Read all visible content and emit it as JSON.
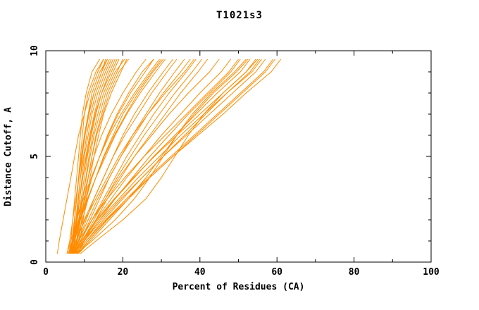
{
  "chart_data": {
    "type": "line",
    "title": "T1021s3",
    "xlabel": "Percent of Residues (CA)",
    "ylabel": "Distance Cutoff, A",
    "xlim": [
      0,
      100
    ],
    "ylim": [
      0,
      10
    ],
    "x_major_ticks": [
      0,
      20,
      40,
      60,
      80,
      100
    ],
    "x_minor_ticks": [
      10,
      30,
      50,
      70,
      90
    ],
    "y_major_ticks": [
      0,
      5,
      10
    ],
    "y_minor_ticks": [
      1,
      2,
      3,
      4,
      6,
      7,
      8,
      9
    ],
    "grid": false,
    "legend": "none",
    "line_color": "#ff8c00",
    "background": "#ffffff",
    "series_description": "Per-model accuracy curves: percent of CA residues (x) under distance cutoff (y)",
    "y_levels": [
      0.4,
      1,
      2,
      3,
      4,
      5,
      6,
      7,
      8,
      9,
      9.6
    ],
    "curves": [
      [
        6.0,
        6.5,
        7.0,
        7.5,
        8.0,
        8.5,
        9.0,
        9.5,
        10.5,
        12.0,
        14.0
      ],
      [
        6.5,
        7.0,
        7.5,
        8.0,
        8.5,
        9.0,
        9.5,
        10.0,
        11.0,
        13.0,
        15.0
      ],
      [
        7.0,
        7.5,
        8.0,
        8.5,
        9.0,
        9.5,
        10.0,
        11.0,
        12.0,
        14.0,
        16.0
      ],
      [
        6.0,
        6.8,
        7.4,
        8.0,
        8.6,
        9.2,
        10.0,
        11.0,
        12.5,
        14.5,
        15.5
      ],
      [
        7.0,
        7.6,
        8.2,
        8.8,
        9.4,
        10.0,
        11.0,
        12.0,
        13.5,
        15.5,
        17.0
      ],
      [
        6.2,
        7.0,
        7.8,
        8.4,
        9.0,
        9.8,
        10.6,
        11.6,
        13.0,
        15.0,
        16.5
      ],
      [
        7.5,
        8.0,
        8.6,
        9.2,
        10.0,
        10.8,
        11.8,
        13.0,
        14.5,
        16.5,
        18.0
      ],
      [
        6.8,
        7.4,
        8.1,
        8.8,
        9.6,
        10.4,
        11.4,
        12.6,
        14.0,
        16.0,
        17.5
      ],
      [
        7.2,
        8.0,
        8.8,
        9.6,
        10.4,
        11.2,
        12.2,
        13.5,
        15.0,
        17.5,
        19.0
      ],
      [
        6.4,
        7.2,
        8.0,
        8.8,
        9.6,
        10.6,
        11.6,
        12.8,
        14.5,
        17.0,
        18.5
      ],
      [
        7.8,
        8.5,
        9.3,
        10.1,
        11.0,
        12.0,
        13.0,
        14.5,
        16.0,
        18.5,
        20.0
      ],
      [
        6.6,
        7.5,
        8.5,
        9.5,
        10.5,
        11.5,
        12.5,
        14.0,
        15.5,
        18.0,
        20.5
      ],
      [
        8.0,
        8.8,
        9.7,
        10.6,
        11.5,
        12.5,
        13.7,
        15.0,
        17.0,
        19.5,
        21.0
      ],
      [
        7.4,
        8.2,
        9.0,
        10.0,
        11.0,
        12.0,
        13.2,
        14.8,
        16.5,
        19.0,
        21.5
      ],
      [
        5.5,
        6.2,
        7.0,
        7.8,
        8.6,
        9.4,
        10.2,
        11.2,
        12.5,
        14.5,
        16.0
      ],
      [
        3.0,
        3.5,
        4.5,
        5.5,
        6.5,
        7.5,
        8.5,
        10.0,
        11.5,
        13.5,
        15.0
      ],
      [
        6.0,
        7.0,
        8.0,
        9.5,
        11.0,
        12.5,
        14.5,
        17.0,
        20.0,
        23.5,
        26.0
      ],
      [
        6.5,
        7.5,
        9.0,
        10.5,
        12.0,
        14.0,
        16.0,
        18.5,
        21.5,
        25.0,
        28.0
      ],
      [
        7.0,
        8.0,
        9.5,
        11.0,
        13.0,
        15.0,
        17.5,
        20.0,
        23.5,
        27.5,
        30.0
      ],
      [
        6.0,
        7.2,
        9.0,
        11.0,
        13.0,
        15.5,
        18.0,
        21.0,
        24.5,
        28.5,
        31.0
      ],
      [
        7.0,
        8.5,
        10.5,
        12.5,
        15.0,
        17.5,
        20.0,
        23.0,
        26.5,
        30.5,
        33.0
      ],
      [
        6.5,
        8.0,
        10.0,
        12.5,
        15.0,
        17.5,
        20.5,
        24.0,
        27.5,
        31.5,
        34.0
      ],
      [
        7.5,
        9.0,
        11.5,
        14.0,
        16.5,
        19.5,
        22.5,
        26.0,
        29.5,
        33.5,
        36.0
      ],
      [
        6.8,
        8.5,
        11.0,
        13.5,
        16.5,
        19.5,
        23.0,
        26.5,
        30.5,
        35.0,
        37.5
      ],
      [
        7.0,
        9.0,
        12.0,
        15.0,
        18.0,
        21.0,
        24.5,
        28.0,
        32.0,
        36.5,
        39.0
      ],
      [
        7.5,
        9.5,
        12.5,
        15.5,
        18.5,
        22.0,
        25.5,
        29.5,
        33.5,
        38.0,
        40.5
      ],
      [
        8.0,
        10.0,
        13.0,
        16.0,
        19.5,
        23.0,
        27.0,
        31.0,
        35.0,
        39.5,
        42.0
      ],
      [
        5.8,
        7.0,
        8.8,
        10.8,
        13.0,
        15.2,
        17.8,
        20.8,
        24.0,
        27.8,
        30.5
      ],
      [
        7.0,
        9.0,
        12.0,
        15.5,
        19.0,
        23.0,
        27.5,
        32.0,
        37.0,
        42.5,
        45.0
      ],
      [
        7.5,
        9.5,
        13.0,
        17.0,
        21.0,
        25.5,
        30.0,
        35.0,
        40.0,
        45.5,
        48.0
      ],
      [
        8.0,
        10.0,
        14.0,
        18.0,
        22.5,
        27.0,
        32.0,
        37.0,
        42.5,
        48.0,
        50.5
      ],
      [
        7.0,
        9.5,
        13.5,
        18.0,
        23.0,
        28.0,
        33.5,
        39.0,
        44.5,
        50.5,
        53.0
      ],
      [
        8.0,
        10.5,
        15.0,
        20.0,
        25.0,
        30.5,
        36.0,
        41.5,
        47.0,
        53.0,
        55.5
      ],
      [
        7.5,
        10.0,
        14.5,
        19.5,
        25.0,
        30.5,
        36.5,
        42.5,
        48.5,
        54.5,
        57.0
      ],
      [
        8.5,
        11.0,
        16.0,
        21.5,
        27.0,
        33.0,
        39.0,
        45.0,
        51.0,
        57.0,
        59.5
      ],
      [
        7.8,
        10.5,
        15.5,
        21.0,
        27.0,
        33.0,
        39.5,
        46.0,
        52.0,
        58.5,
        61.0
      ],
      [
        6.5,
        8.5,
        12.0,
        16.0,
        20.5,
        25.5,
        31.0,
        36.5,
        42.0,
        47.5,
        50.0
      ],
      [
        7.2,
        9.8,
        14.0,
        19.0,
        24.0,
        29.5,
        35.0,
        41.0,
        47.0,
        53.5,
        56.0
      ],
      [
        8.2,
        11.0,
        15.8,
        21.0,
        26.5,
        32.5,
        38.5,
        44.5,
        50.5,
        56.5,
        59.0
      ],
      [
        6.8,
        9.2,
        13.2,
        17.8,
        22.8,
        28.2,
        34.0,
        40.0,
        46.0,
        52.0,
        54.5
      ],
      [
        8.0,
        12.0,
        18.0,
        23.0,
        27.0,
        30.5,
        34.0,
        38.0,
        43.0,
        49.0,
        52.0
      ],
      [
        9.0,
        13.0,
        20.0,
        26.0,
        30.0,
        33.5,
        37.0,
        41.0,
        46.0,
        52.0,
        55.0
      ],
      [
        8.5,
        11.5,
        16.5,
        21.5,
        26.0,
        30.0,
        34.0,
        38.5,
        43.5,
        49.5,
        52.5
      ],
      [
        6.0,
        7.8,
        10.2,
        13.0,
        16.0,
        19.0,
        22.5,
        26.5,
        31.0,
        36.0,
        38.5
      ],
      [
        5.5,
        6.5,
        8.0,
        9.8,
        11.8,
        14.0,
        16.5,
        19.5,
        23.0,
        27.0,
        29.5
      ],
      [
        6.2,
        7.2,
        8.6,
        10.2,
        12.0,
        14.0,
        16.2,
        18.8,
        22.0,
        25.8,
        28.0
      ]
    ]
  }
}
